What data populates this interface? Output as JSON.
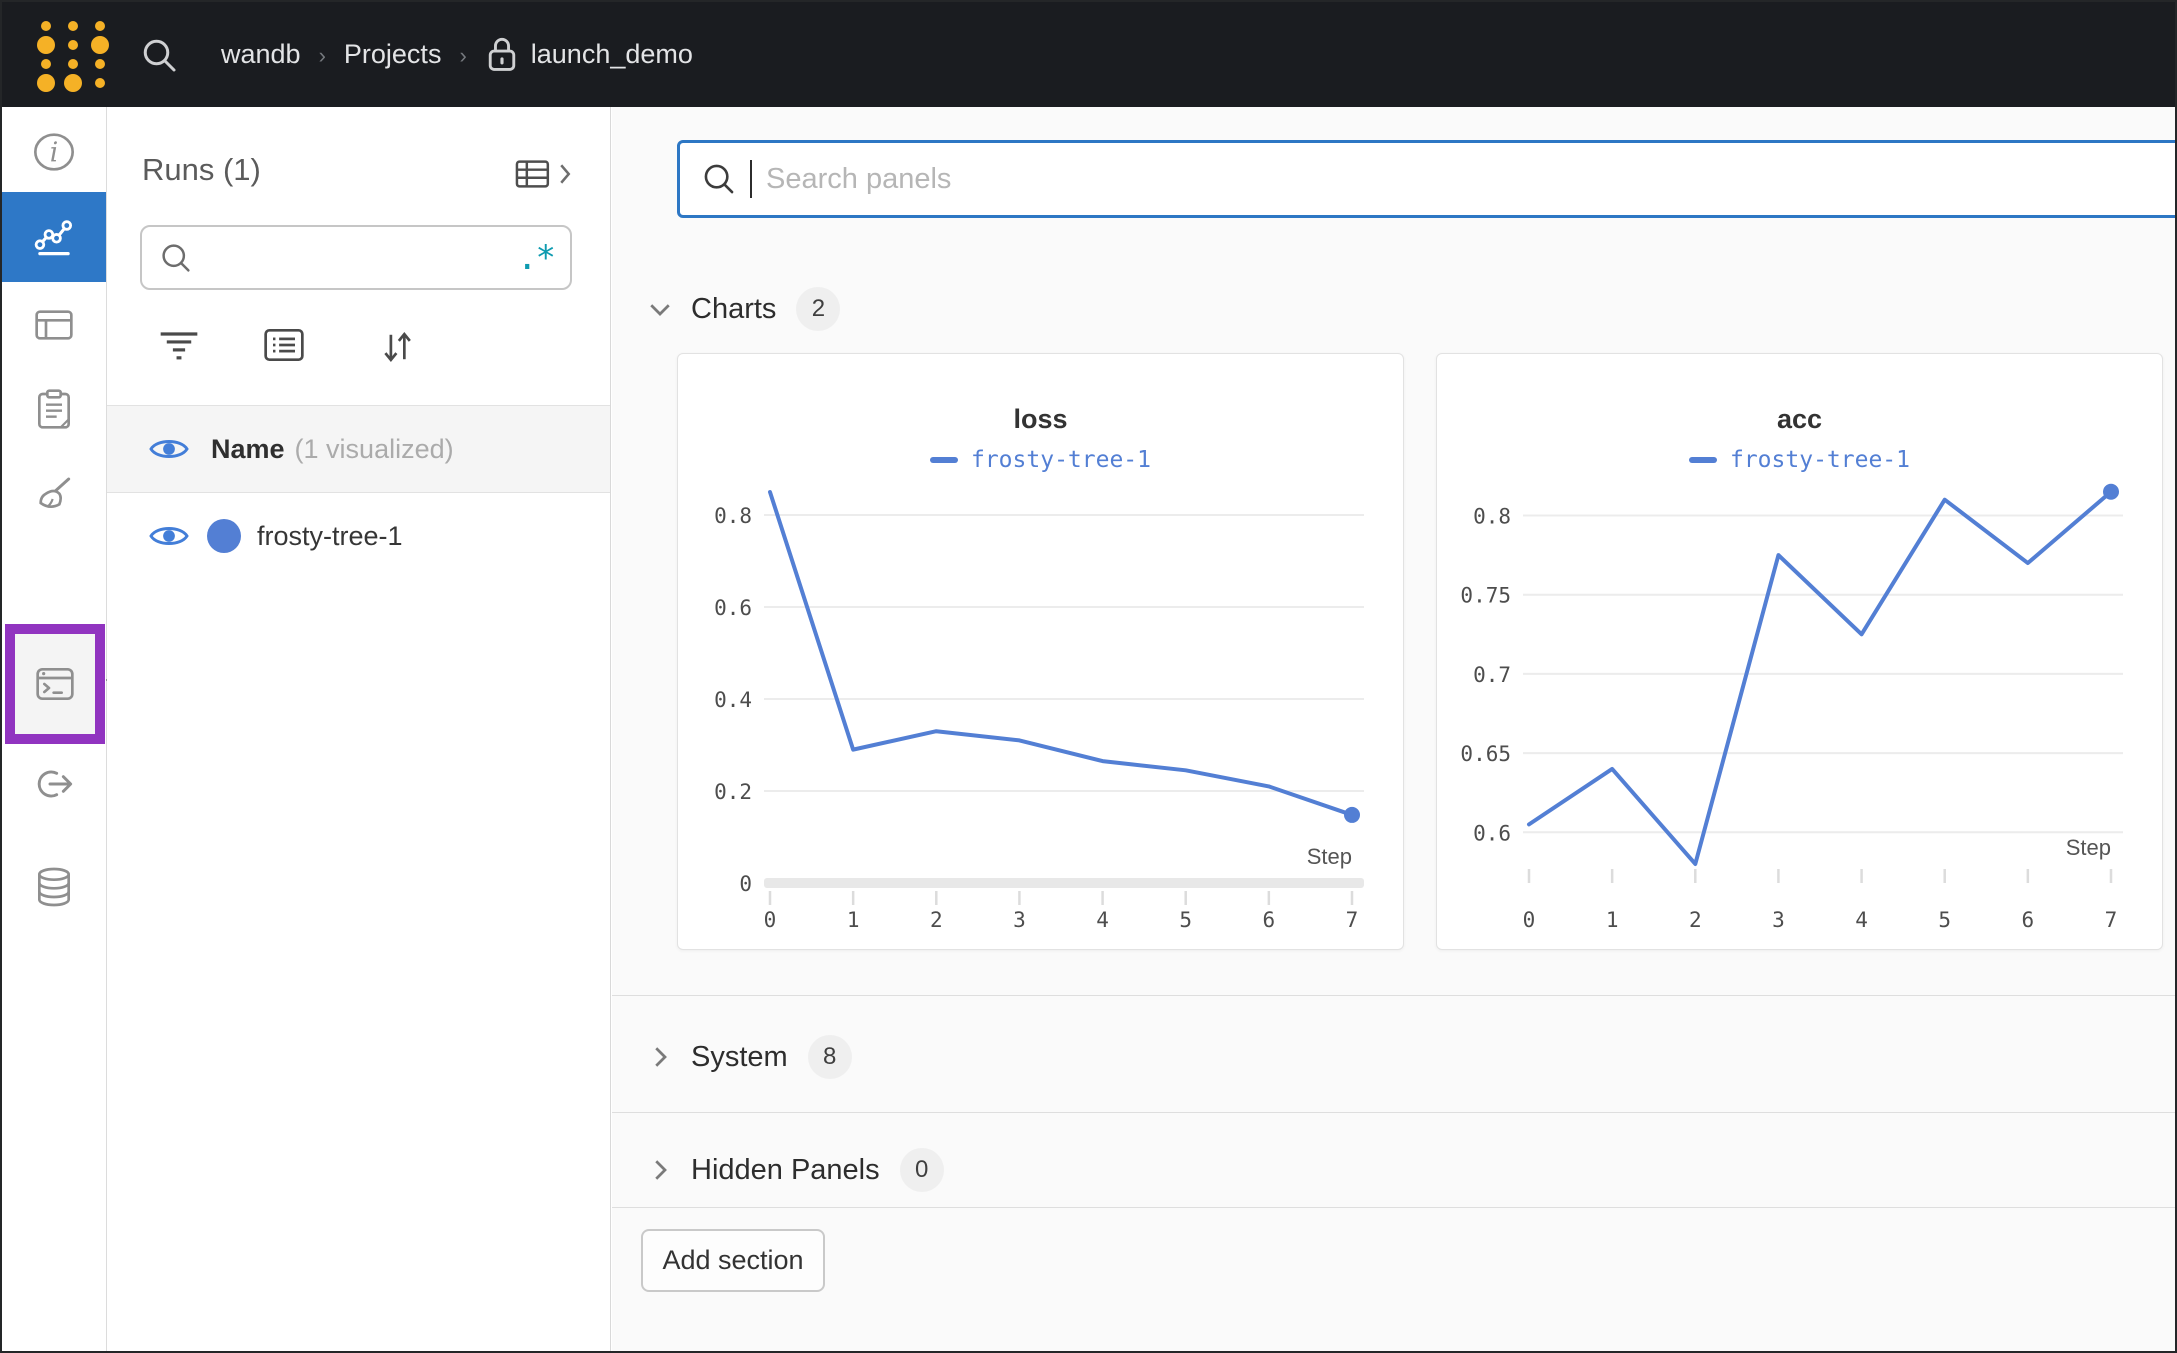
{
  "navbar": {
    "breadcrumb": {
      "org": "wandb",
      "section": "Projects",
      "project": "launch_demo"
    }
  },
  "sidebar": {
    "tooltip_label": "Jobs"
  },
  "runs_panel": {
    "title": "Runs (1)",
    "search_value": "",
    "header_name": "Name",
    "header_visualized": "(1 visualized)",
    "runs": [
      {
        "name": "frosty-tree-1"
      }
    ]
  },
  "main": {
    "search_placeholder": "Search panels",
    "sections": {
      "charts": {
        "label": "Charts",
        "count": "2"
      },
      "system": {
        "label": "System",
        "count": "8"
      },
      "hidden": {
        "label": "Hidden Panels",
        "count": "0"
      }
    },
    "add_section_label": "Add section"
  },
  "colors": {
    "navbar_bg": "#1a1c20",
    "logo_yellow": "#f5b126",
    "active_sidebar_blue": "#2e78c7",
    "run_line_blue": "#537fd4",
    "purple_highlight": "#9134c0",
    "regex_teal": "#0e9bb0",
    "search_focus_border": "#2d77c4"
  },
  "chart_data": [
    {
      "type": "line",
      "title": "loss",
      "legend": "frosty-tree-1",
      "xlabel": "Step",
      "x": [
        0,
        1,
        2,
        3,
        4,
        5,
        6,
        7
      ],
      "values": [
        0.85,
        0.29,
        0.33,
        0.31,
        0.265,
        0.245,
        0.21,
        0.148
      ],
      "yticks": [
        0,
        0.2,
        0.4,
        0.6,
        0.8
      ],
      "ytick_labels": [
        "0",
        "0.2",
        "0.4",
        "0.6",
        "0.8"
      ],
      "ylim": [
        0,
        0.861
      ],
      "axis_band": true,
      "grid": true,
      "legend_position": "top",
      "line_color": "#537fd4"
    },
    {
      "type": "line",
      "title": "acc",
      "legend": "frosty-tree-1",
      "xlabel": "Step",
      "x": [
        0,
        1,
        2,
        3,
        4,
        5,
        6,
        7
      ],
      "values": [
        0.605,
        0.64,
        0.58,
        0.775,
        0.725,
        0.81,
        0.77,
        0.815
      ],
      "yticks": [
        0.6,
        0.65,
        0.7,
        0.75,
        0.8
      ],
      "ytick_labels": [
        "0.6",
        "0.65",
        "0.7",
        "0.75",
        "0.8"
      ],
      "ylim": [
        0.568,
        0.818
      ],
      "axis_band": false,
      "grid": true,
      "legend_position": "top",
      "line_color": "#537fd4"
    }
  ]
}
